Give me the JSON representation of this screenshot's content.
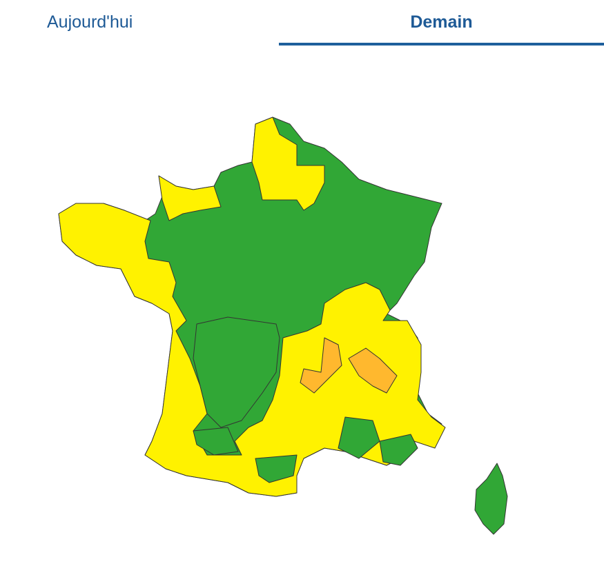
{
  "tabs": [
    {
      "label": "Aujourd'hui",
      "active": false
    },
    {
      "label": "Demain",
      "active": true
    }
  ],
  "colors": {
    "tab_text": "#1e5a96",
    "tab_underline": "#1e5f9c",
    "vigilance_green": "#31a736",
    "vigilance_yellow": "#fff200",
    "vigilance_orange": "#ffb82e"
  },
  "map": {
    "areas": [
      {
        "name": "france-base",
        "level": "green"
      },
      {
        "name": "west-and-south-region",
        "level": "yellow"
      },
      {
        "name": "north-region",
        "level": "yellow"
      },
      {
        "name": "normandy-region",
        "level": "yellow"
      },
      {
        "name": "southwest-interior-region",
        "level": "green"
      },
      {
        "name": "gers-garonne-region",
        "level": "green"
      },
      {
        "name": "aude-region",
        "level": "green"
      },
      {
        "name": "gard-herault-region",
        "level": "green"
      },
      {
        "name": "provence-region",
        "level": "green"
      },
      {
        "name": "orange-region-west",
        "level": "orange"
      },
      {
        "name": "orange-region-east",
        "level": "orange"
      },
      {
        "name": "corsica",
        "level": "green"
      }
    ]
  }
}
